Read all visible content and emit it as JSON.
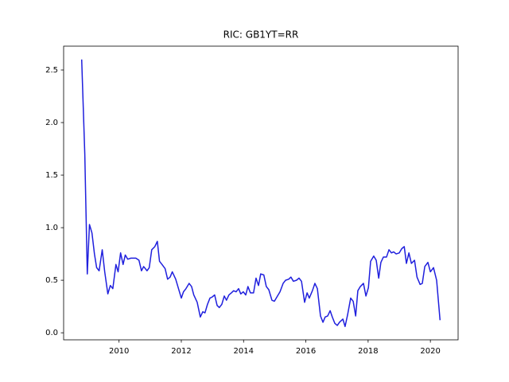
{
  "chart_data": {
    "type": "line",
    "title": "RIC: GB1YT=RR",
    "series": [
      {
        "color": "#1f1fdd",
        "x": [
          2008.8,
          2008.9,
          2008.98,
          2009.05,
          2009.13,
          2009.21,
          2009.28,
          2009.36,
          2009.46,
          2009.54,
          2009.64,
          2009.72,
          2009.8,
          2009.9,
          2009.97,
          2010.05,
          2010.13,
          2010.2,
          2010.28,
          2010.38,
          2010.54,
          2010.64,
          2010.72,
          2010.79,
          2010.9,
          2010.97,
          2011.05,
          2011.15,
          2011.23,
          2011.3,
          2011.38,
          2011.48,
          2011.56,
          2011.64,
          2011.71,
          2011.82,
          2011.89,
          2012.0,
          2012.07,
          2012.15,
          2012.25,
          2012.33,
          2012.4,
          2012.51,
          2012.61,
          2012.69,
          2012.76,
          2012.84,
          2012.92,
          2012.99,
          2013.07,
          2013.15,
          2013.22,
          2013.3,
          2013.38,
          2013.45,
          2013.53,
          2013.61,
          2013.68,
          2013.76,
          2013.84,
          2013.91,
          2013.99,
          2014.07,
          2014.14,
          2014.22,
          2014.32,
          2014.4,
          2014.48,
          2014.55,
          2014.65,
          2014.73,
          2014.81,
          2014.91,
          2014.99,
          2015.09,
          2015.17,
          2015.27,
          2015.35,
          2015.45,
          2015.52,
          2015.6,
          2015.7,
          2015.78,
          2015.86,
          2015.96,
          2016.04,
          2016.11,
          2016.21,
          2016.29,
          2016.37,
          2016.47,
          2016.55,
          2016.62,
          2016.7,
          2016.78,
          2016.85,
          2016.93,
          2017.01,
          2017.08,
          2017.19,
          2017.26,
          2017.34,
          2017.44,
          2017.52,
          2017.6,
          2017.67,
          2017.75,
          2017.85,
          2017.93,
          2018.01,
          2018.08,
          2018.18,
          2018.26,
          2018.34,
          2018.41,
          2018.49,
          2018.59,
          2018.67,
          2018.75,
          2018.82,
          2018.9,
          2019.0,
          2019.08,
          2019.16,
          2019.23,
          2019.31,
          2019.39,
          2019.49,
          2019.57,
          2019.67,
          2019.74,
          2019.82,
          2019.92,
          2020.0,
          2020.1,
          2020.2,
          2020.31
        ],
        "values": [
          2.6,
          1.7,
          0.56,
          1.03,
          0.95,
          0.75,
          0.62,
          0.59,
          0.79,
          0.58,
          0.37,
          0.45,
          0.42,
          0.65,
          0.58,
          0.76,
          0.65,
          0.74,
          0.7,
          0.71,
          0.71,
          0.69,
          0.59,
          0.63,
          0.59,
          0.62,
          0.79,
          0.82,
          0.87,
          0.68,
          0.65,
          0.61,
          0.51,
          0.53,
          0.58,
          0.51,
          0.44,
          0.33,
          0.39,
          0.42,
          0.47,
          0.44,
          0.36,
          0.29,
          0.15,
          0.2,
          0.19,
          0.27,
          0.33,
          0.34,
          0.36,
          0.26,
          0.24,
          0.27,
          0.35,
          0.31,
          0.36,
          0.38,
          0.4,
          0.39,
          0.42,
          0.37,
          0.39,
          0.36,
          0.44,
          0.38,
          0.38,
          0.52,
          0.45,
          0.56,
          0.55,
          0.44,
          0.41,
          0.31,
          0.3,
          0.35,
          0.39,
          0.47,
          0.5,
          0.51,
          0.53,
          0.49,
          0.5,
          0.52,
          0.49,
          0.29,
          0.38,
          0.33,
          0.4,
          0.47,
          0.42,
          0.16,
          0.1,
          0.15,
          0.16,
          0.21,
          0.15,
          0.09,
          0.07,
          0.1,
          0.13,
          0.06,
          0.17,
          0.33,
          0.3,
          0.16,
          0.4,
          0.44,
          0.47,
          0.35,
          0.43,
          0.68,
          0.73,
          0.69,
          0.52,
          0.67,
          0.72,
          0.72,
          0.79,
          0.76,
          0.77,
          0.75,
          0.76,
          0.8,
          0.82,
          0.66,
          0.76,
          0.66,
          0.69,
          0.53,
          0.46,
          0.47,
          0.63,
          0.67,
          0.58,
          0.62,
          0.5,
          0.12
        ]
      }
    ],
    "xlim": [
      2008.22,
      2020.89
    ],
    "xticks": [
      2010,
      2012,
      2014,
      2016,
      2018,
      2020
    ],
    "ylim": [
      -0.067,
      2.727
    ],
    "yticks": [
      {
        "value": 0,
        "label": "0.0"
      },
      0.5,
      {
        "value": 1,
        "label": "1.0"
      },
      1.5,
      {
        "value": 2,
        "label": "2.0"
      },
      2.5
    ]
  }
}
